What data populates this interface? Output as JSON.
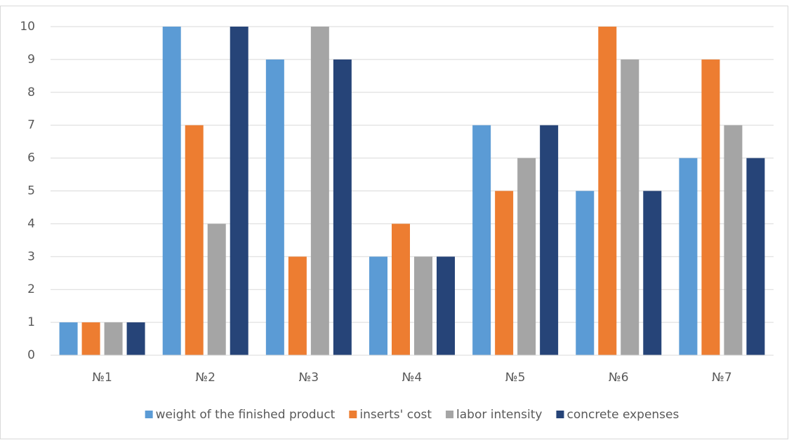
{
  "chart_data": {
    "type": "bar",
    "categories": [
      "№1",
      "№2",
      "№3",
      "№4",
      "№5",
      "№6",
      "№7"
    ],
    "series": [
      {
        "name": "weight of the finished product",
        "color": "#5b9bd5",
        "values": [
          1,
          10,
          9,
          3,
          7,
          5,
          6
        ]
      },
      {
        "name": "inserts' cost",
        "color": "#ed7d31",
        "values": [
          1,
          7,
          3,
          4,
          5,
          10,
          9
        ]
      },
      {
        "name": "labor intensity",
        "color": "#a5a5a5",
        "values": [
          1,
          4,
          10,
          3,
          6,
          9,
          7
        ]
      },
      {
        "name": "concrete expenses",
        "color": "#264478",
        "values": [
          1,
          10,
          9,
          3,
          7,
          5,
          6
        ]
      }
    ],
    "ylim": [
      0,
      10
    ],
    "yticks": [
      0,
      1,
      2,
      3,
      4,
      5,
      6,
      7,
      8,
      9,
      10
    ],
    "grid": true,
    "legend": "bottom"
  }
}
